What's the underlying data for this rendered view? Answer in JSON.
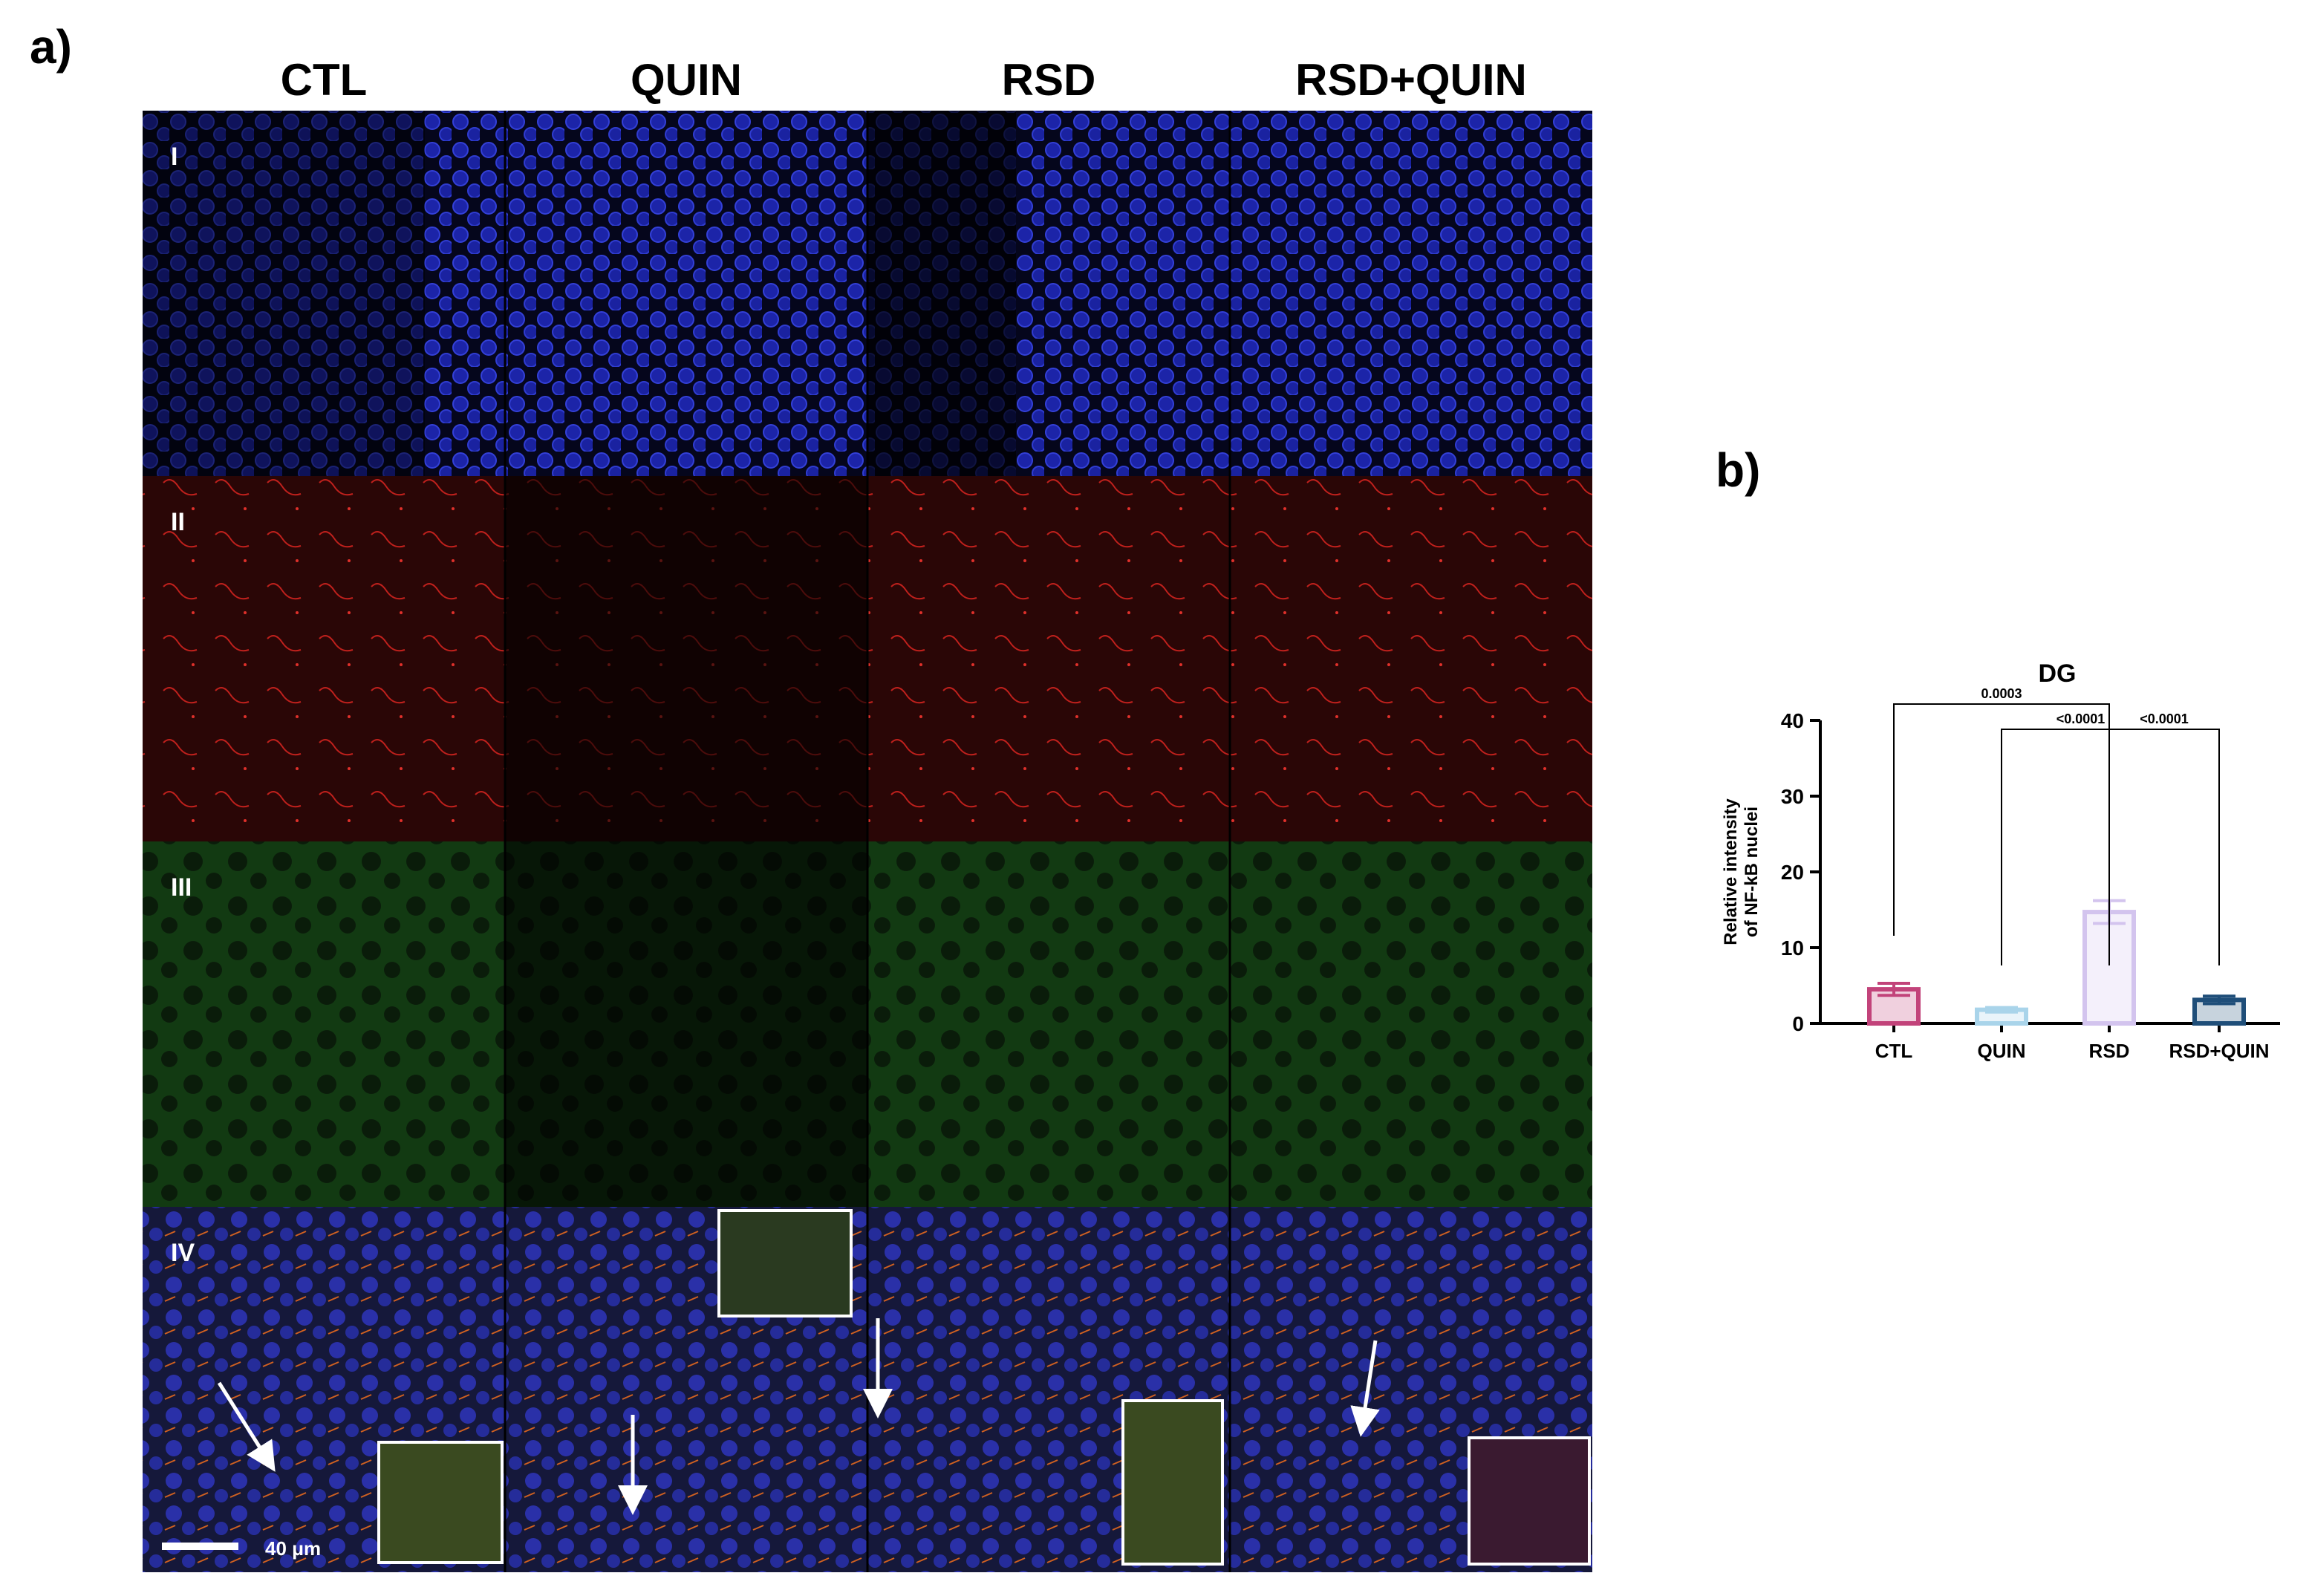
{
  "panel_a": {
    "label": "a)",
    "columns": [
      "CTL",
      "QUIN",
      "RSD",
      "RSD+QUIN"
    ],
    "rows": [
      "I",
      "II",
      "III",
      "IV"
    ],
    "scale_bar": "40 μm"
  },
  "panel_b_label": "b)",
  "chart_data": {
    "type": "bar",
    "title": "DG",
    "ylabel": [
      "Relative intensity",
      "of NF-kB nuclei"
    ],
    "categories": [
      "CTL",
      "QUIN",
      "RSD",
      "RSD+QUIN"
    ],
    "values": [
      4.5,
      1.8,
      14.7,
      3.1
    ],
    "errors": [
      0.8,
      0.3,
      1.5,
      0.5
    ],
    "colors": [
      "#c2437a",
      "#a9d4ea",
      "#d3c4ee",
      "#1f4e79"
    ],
    "ylim": [
      0,
      40
    ],
    "yticks": [
      0,
      10,
      20,
      30,
      40
    ],
    "comparisons": [
      "0.0003",
      "<0.0001",
      "<0.0001"
    ]
  }
}
